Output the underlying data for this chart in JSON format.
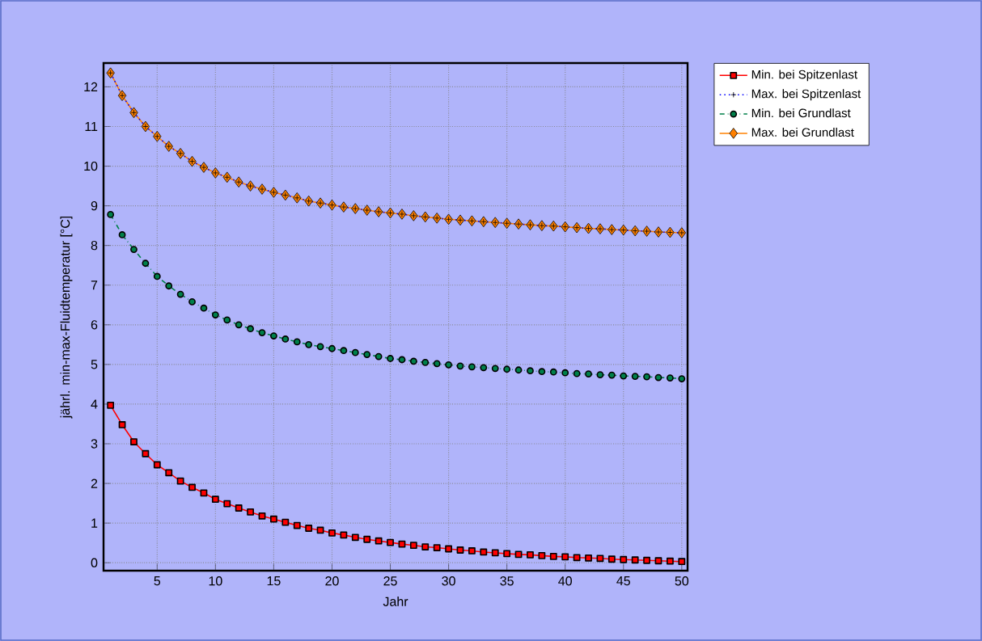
{
  "chart_data": {
    "type": "line",
    "xlabel": "Jahr",
    "ylabel": "jährl. min-max-Fluidtemperatur [°C]",
    "x": [
      1,
      2,
      3,
      4,
      5,
      6,
      7,
      8,
      9,
      10,
      11,
      12,
      13,
      14,
      15,
      16,
      17,
      18,
      19,
      20,
      21,
      22,
      23,
      24,
      25,
      26,
      27,
      28,
      29,
      30,
      31,
      32,
      33,
      34,
      35,
      36,
      37,
      38,
      39,
      40,
      41,
      42,
      43,
      44,
      45,
      46,
      47,
      48,
      49,
      50
    ],
    "xlim": [
      0.4,
      50.5
    ],
    "xticks": [
      5,
      10,
      15,
      20,
      25,
      30,
      35,
      40,
      45,
      50
    ],
    "ylim": [
      -0.2,
      12.6
    ],
    "yticks": [
      0,
      1,
      2,
      3,
      4,
      5,
      6,
      7,
      8,
      9,
      10,
      11,
      12
    ],
    "grid": true,
    "legend": "top right",
    "series": [
      {
        "name": "Min. bei Spitzenlast",
        "color": "#ff0000",
        "marker": "square",
        "line_style": "solid",
        "values": [
          3.97,
          3.48,
          3.05,
          2.75,
          2.47,
          2.27,
          2.06,
          1.9,
          1.76,
          1.6,
          1.49,
          1.38,
          1.28,
          1.18,
          1.1,
          1.02,
          0.94,
          0.87,
          0.82,
          0.75,
          0.7,
          0.64,
          0.59,
          0.55,
          0.51,
          0.47,
          0.44,
          0.4,
          0.38,
          0.35,
          0.32,
          0.3,
          0.27,
          0.25,
          0.23,
          0.21,
          0.2,
          0.18,
          0.16,
          0.15,
          0.13,
          0.12,
          0.11,
          0.09,
          0.08,
          0.07,
          0.06,
          0.05,
          0.04,
          0.03
        ]
      },
      {
        "name": "Max. bei Spitzenlast",
        "color": "#0000ff",
        "marker": "cross",
        "line_style": "dotted",
        "values": [
          12.35,
          11.78,
          11.35,
          11.0,
          10.75,
          10.5,
          10.32,
          10.12,
          9.97,
          9.83,
          9.72,
          9.6,
          9.5,
          9.42,
          9.34,
          9.27,
          9.2,
          9.12,
          9.07,
          9.02,
          8.97,
          8.93,
          8.89,
          8.85,
          8.82,
          8.79,
          8.75,
          8.72,
          8.69,
          8.66,
          8.64,
          8.62,
          8.6,
          8.58,
          8.56,
          8.54,
          8.52,
          8.5,
          8.49,
          8.47,
          8.45,
          8.43,
          8.42,
          8.4,
          8.39,
          8.37,
          8.36,
          8.34,
          8.33,
          8.32
        ]
      },
      {
        "name": "Min. bei Grundlast",
        "color": "#00804a",
        "marker": "circle",
        "line_style": "dashdot",
        "values": [
          8.78,
          8.27,
          7.9,
          7.55,
          7.22,
          6.98,
          6.77,
          6.58,
          6.42,
          6.25,
          6.12,
          6.0,
          5.9,
          5.8,
          5.72,
          5.64,
          5.57,
          5.5,
          5.45,
          5.4,
          5.35,
          5.3,
          5.25,
          5.2,
          5.15,
          5.12,
          5.08,
          5.05,
          5.02,
          4.99,
          4.96,
          4.94,
          4.92,
          4.9,
          4.88,
          4.86,
          4.84,
          4.82,
          4.81,
          4.79,
          4.77,
          4.76,
          4.74,
          4.73,
          4.71,
          4.7,
          4.69,
          4.67,
          4.66,
          4.64
        ]
      },
      {
        "name": "Max. bei Grundlast",
        "color": "#ff8000",
        "marker": "diamond",
        "line_style": "solid",
        "values": [
          12.35,
          11.78,
          11.35,
          11.0,
          10.75,
          10.5,
          10.32,
          10.12,
          9.97,
          9.83,
          9.72,
          9.6,
          9.5,
          9.42,
          9.34,
          9.27,
          9.2,
          9.12,
          9.07,
          9.02,
          8.97,
          8.93,
          8.89,
          8.85,
          8.82,
          8.79,
          8.75,
          8.72,
          8.69,
          8.66,
          8.64,
          8.62,
          8.6,
          8.58,
          8.56,
          8.54,
          8.52,
          8.5,
          8.49,
          8.47,
          8.45,
          8.43,
          8.42,
          8.4,
          8.39,
          8.37,
          8.36,
          8.34,
          8.33,
          8.32
        ]
      }
    ]
  }
}
